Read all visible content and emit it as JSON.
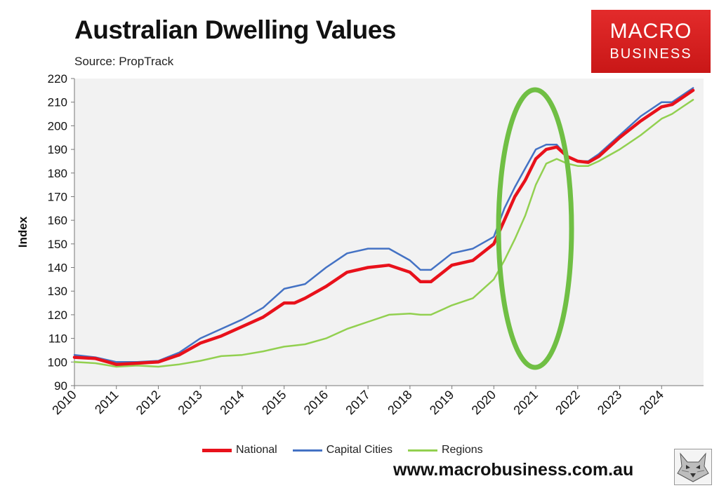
{
  "header": {
    "title": "Australian Dwelling Values",
    "source": "Source: PropTrack"
  },
  "logo": {
    "line1": "MACRO",
    "line2": "BUSINESS",
    "background": "#d81e1e"
  },
  "footer": {
    "website": "www.macrobusiness.com.au"
  },
  "chart_data": {
    "type": "line",
    "title": "Australian Dwelling Values",
    "subtitle": "Source: PropTrack",
    "ylabel": "Index",
    "xlabel": "",
    "ylim": [
      90,
      220
    ],
    "y_ticks": [
      90,
      100,
      110,
      120,
      130,
      140,
      150,
      160,
      170,
      180,
      190,
      200,
      210,
      220
    ],
    "xlim": [
      2010,
      2025
    ],
    "x_ticks": [
      "2010",
      "2011",
      "2012",
      "2013",
      "2014",
      "2015",
      "2016",
      "2017",
      "2018",
      "2019",
      "2020",
      "2021",
      "2022",
      "2023",
      "2024"
    ],
    "grid": false,
    "legend_position": "bottom",
    "annotation": "green ellipse highlighting 2020-2021 surge",
    "x": [
      2010.0,
      2010.5,
      2011.0,
      2011.5,
      2012.0,
      2012.5,
      2013.0,
      2013.5,
      2014.0,
      2014.5,
      2015.0,
      2015.25,
      2015.5,
      2016.0,
      2016.5,
      2017.0,
      2017.5,
      2018.0,
      2018.25,
      2018.5,
      2019.0,
      2019.5,
      2020.0,
      2020.25,
      2020.5,
      2020.75,
      2021.0,
      2021.25,
      2021.5,
      2021.75,
      2022.0,
      2022.25,
      2022.5,
      2023.0,
      2023.5,
      2024.0,
      2024.25,
      2024.5,
      2024.75
    ],
    "series": [
      {
        "name": "National",
        "color": "#e8111b",
        "values": [
          102,
          101.5,
          99,
          99.5,
          100,
          103,
          108,
          111,
          115,
          119,
          125,
          125,
          127,
          132,
          138,
          140,
          141,
          138,
          134,
          134,
          141,
          143,
          150,
          160,
          170,
          177,
          186,
          190,
          191,
          187,
          185,
          184.5,
          187,
          195,
          202,
          208,
          209,
          212,
          215
        ]
      },
      {
        "name": "Capital Cities",
        "color": "#4472c4",
        "values": [
          103,
          102,
          100,
          100,
          100.5,
          104,
          110,
          114,
          118,
          123,
          131,
          132,
          133,
          140,
          146,
          148,
          148,
          143,
          139,
          139,
          146,
          148,
          153,
          165,
          174,
          182,
          190,
          192,
          192,
          187,
          185,
          185,
          188,
          196,
          204,
          210,
          210,
          213,
          216
        ]
      },
      {
        "name": "Regions",
        "color": "#92d050",
        "values": [
          100,
          99.5,
          98,
          98.5,
          98,
          99,
          100.5,
          102.5,
          103,
          104.5,
          106.5,
          107,
          107.5,
          110,
          114,
          117,
          120,
          120.5,
          120,
          120,
          124,
          127,
          135,
          143,
          152,
          162,
          175,
          184,
          186,
          184,
          183,
          183,
          185,
          190,
          196,
          203,
          205,
          208,
          211
        ]
      }
    ]
  }
}
